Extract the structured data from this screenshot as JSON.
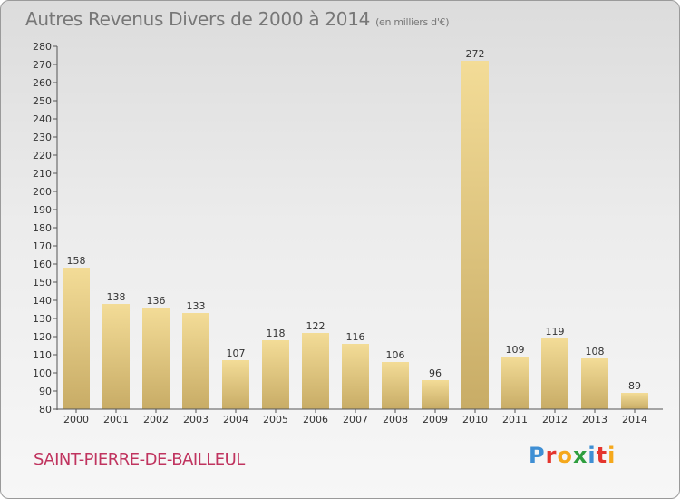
{
  "header": {
    "title": "Autres Revenus Divers de 2000 à 2014",
    "subtitle": "(en milliers d'€)"
  },
  "footer": {
    "commune": "SAINT-PIERRE-DE-BAILLEUL",
    "logo": "Proxiti"
  },
  "colors": {
    "bar_light": "#f3dc97",
    "bar_dark": "#c8ac66",
    "text": "#777777",
    "commune": "#c0345f",
    "logo_letters": [
      "#3f8fd4",
      "#e4352e",
      "#f5a81c",
      "#2e9e3e",
      "#3f8fd4",
      "#e4352e",
      "#f5a81c"
    ]
  },
  "chart_data": {
    "type": "bar",
    "categories": [
      "2000",
      "2001",
      "2002",
      "2003",
      "2004",
      "2005",
      "2006",
      "2007",
      "2008",
      "2009",
      "2010",
      "2011",
      "2012",
      "2013",
      "2014"
    ],
    "values": [
      158,
      138,
      136,
      133,
      107,
      118,
      122,
      116,
      106,
      96,
      272,
      109,
      119,
      108,
      89
    ],
    "ylim": [
      80,
      280
    ],
    "ytick_step": 10,
    "grid": false,
    "data_labels": true
  }
}
